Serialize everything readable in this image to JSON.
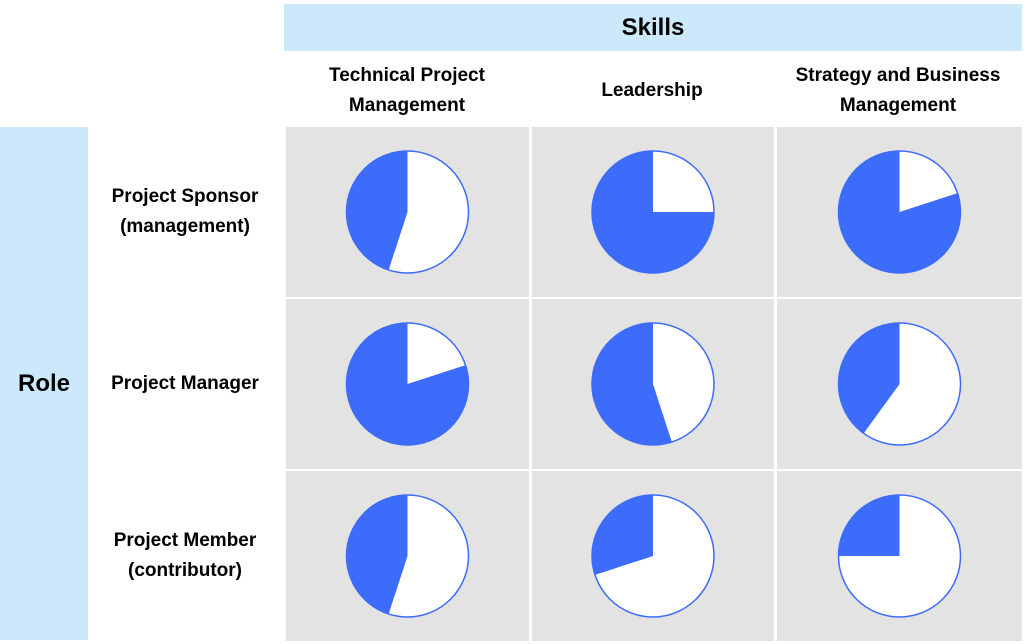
{
  "header": {
    "skills": "Skills",
    "role": "Role"
  },
  "columns": [
    "Technical Project\nManagement",
    "Leadership",
    "Strategy and Business\nManagement"
  ],
  "rows": [
    "Project Sponsor\n(management)",
    "Project Manager",
    "Project Member\n(contributor)"
  ],
  "colors": {
    "fill": "#3d6bfa",
    "empty": "#ffffff",
    "outline": "#3d6bfa",
    "cell": "#e3e3e3",
    "header": "#cce9fb"
  },
  "chart_data": {
    "type": "pie-matrix",
    "unit": "fraction of circle filled",
    "values": [
      [
        0.45,
        0.75,
        0.8
      ],
      [
        0.8,
        0.55,
        0.4
      ],
      [
        0.45,
        0.3,
        0.25
      ]
    ]
  }
}
